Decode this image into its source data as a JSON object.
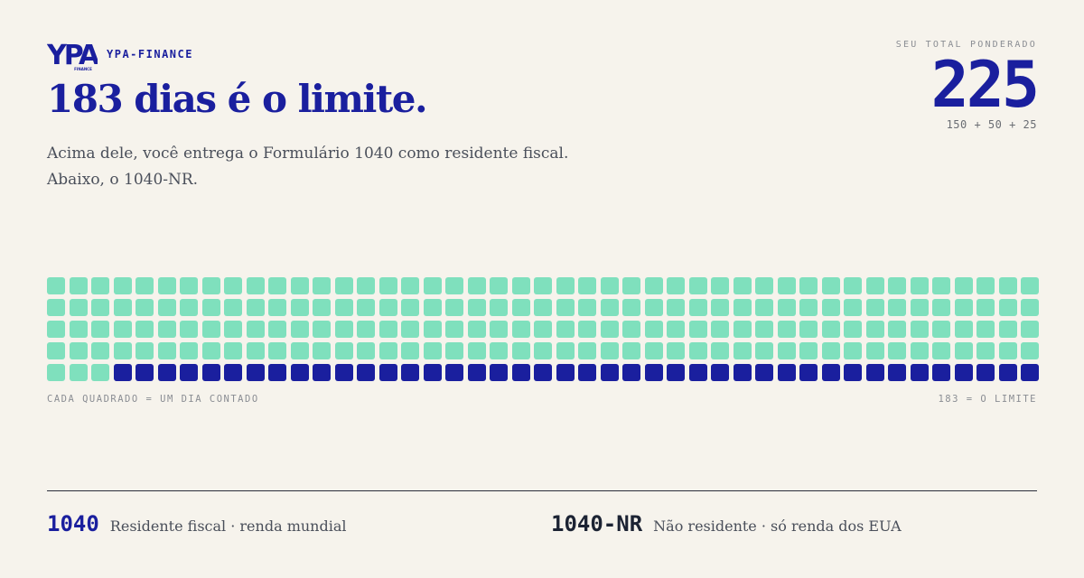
{
  "brand": {
    "name": "YPA-FINANCE",
    "logo_text": "YPA",
    "logo_subtext": "FINANCE"
  },
  "title": "183 dias é o limite.",
  "subtitle": "Acima dele, você entrega o Formulário 1040 como residente fiscal. Abaixo, o 1040-NR.",
  "total": {
    "label": "SEU TOTAL PONDERADO",
    "value": "225",
    "breakdown": "150 + 50 + 25"
  },
  "chart_data": {
    "type": "waffle",
    "total_cells": 225,
    "counted_days": 183,
    "columns": 45,
    "rows": 5,
    "colors": {
      "counted": "#7fe0bd",
      "remaining": "#1a1f9e"
    }
  },
  "captions": {
    "left": "CADA QUADRADO = UM DIA CONTADO",
    "right": "183 = O LIMITE"
  },
  "legend": [
    {
      "code": "1040",
      "description": "Residente fiscal · renda mundial"
    },
    {
      "code": "1040-NR",
      "description": "Não residente · só renda dos EUA"
    }
  ],
  "colors": {
    "background": "#f6f3ec",
    "primary": "#1a1f9e",
    "mint": "#7fe0bd",
    "dark": "#1c2333"
  }
}
